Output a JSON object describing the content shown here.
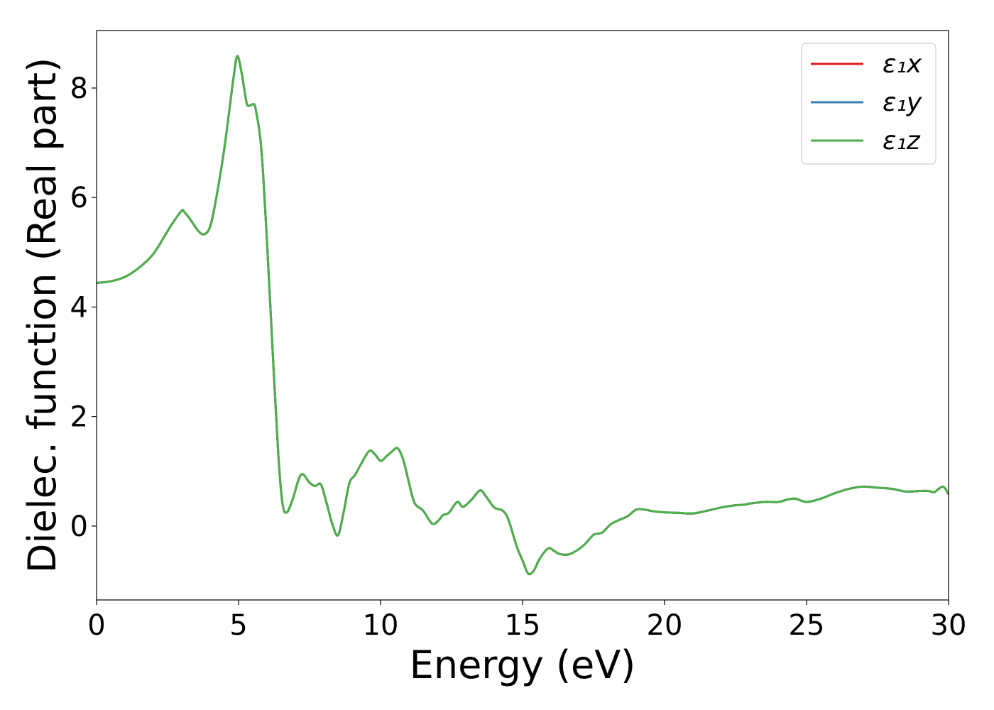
{
  "chart_data": {
    "type": "line",
    "title": "",
    "xlabel": "Energy (eV)",
    "ylabel": "Dielec. function (Real part)",
    "xlim": [
      0,
      30
    ],
    "ylim": [
      -1.35,
      9.05
    ],
    "xticks": [
      0,
      5,
      10,
      15,
      20,
      25,
      30
    ],
    "yticks": [
      0,
      2,
      4,
      6,
      8
    ],
    "grid": false,
    "legend_position": "top-right",
    "x": [
      0,
      0.5,
      1.0,
      1.5,
      2.0,
      2.4,
      2.7,
      3.0,
      3.1,
      3.3,
      3.6,
      3.8,
      4.0,
      4.2,
      4.5,
      4.8,
      4.95,
      5.1,
      5.2,
      5.3,
      5.4,
      5.5,
      5.6,
      5.8,
      6.0,
      6.2,
      6.4,
      6.55,
      6.7,
      6.9,
      7.2,
      7.5,
      7.7,
      7.9,
      8.1,
      8.3,
      8.5,
      8.7,
      8.9,
      9.1,
      9.3,
      9.6,
      9.8,
      10.0,
      10.2,
      10.4,
      10.6,
      10.8,
      11.0,
      11.2,
      11.5,
      11.8,
      12.0,
      12.2,
      12.4,
      12.7,
      12.9,
      13.2,
      13.5,
      13.7,
      14.0,
      14.3,
      14.5,
      14.8,
      15.0,
      15.2,
      15.4,
      15.6,
      15.9,
      16.1,
      16.3,
      16.6,
      16.9,
      17.2,
      17.5,
      17.8,
      18.1,
      18.4,
      18.7,
      19.0,
      19.3,
      19.6,
      20.0,
      20.5,
      21.0,
      21.5,
      22.0,
      22.5,
      22.8,
      23.0,
      23.5,
      24.0,
      24.3,
      24.6,
      25.0,
      25.5,
      26.0,
      26.5,
      27.0,
      27.5,
      28.0,
      28.5,
      29.0,
      29.3,
      29.5,
      29.8,
      30.0
    ],
    "series": [
      {
        "name": "ε₁x",
        "color": "#e41a1c",
        "values": [
          4.44,
          4.47,
          4.55,
          4.72,
          4.97,
          5.3,
          5.55,
          5.76,
          5.73,
          5.6,
          5.38,
          5.33,
          5.47,
          5.95,
          6.9,
          8.1,
          8.58,
          8.3,
          7.98,
          7.7,
          7.68,
          7.7,
          7.62,
          6.9,
          5.2,
          3.2,
          1.3,
          0.4,
          0.25,
          0.48,
          0.94,
          0.79,
          0.73,
          0.76,
          0.42,
          0.04,
          -0.17,
          0.25,
          0.78,
          0.93,
          1.12,
          1.37,
          1.31,
          1.19,
          1.27,
          1.36,
          1.42,
          1.21,
          0.79,
          0.42,
          0.28,
          0.05,
          0.08,
          0.2,
          0.24,
          0.44,
          0.35,
          0.48,
          0.65,
          0.55,
          0.34,
          0.28,
          0.12,
          -0.38,
          -0.63,
          -0.87,
          -0.81,
          -0.6,
          -0.41,
          -0.45,
          -0.51,
          -0.52,
          -0.45,
          -0.33,
          -0.16,
          -0.12,
          0.03,
          0.11,
          0.18,
          0.3,
          0.3,
          0.27,
          0.25,
          0.24,
          0.23,
          0.28,
          0.34,
          0.38,
          0.39,
          0.41,
          0.44,
          0.44,
          0.48,
          0.5,
          0.44,
          0.5,
          0.6,
          0.68,
          0.72,
          0.7,
          0.68,
          0.63,
          0.64,
          0.64,
          0.62,
          0.72,
          0.58
        ]
      },
      {
        "name": "ε₁y",
        "color": "#377eb8",
        "values": [
          4.44,
          4.47,
          4.55,
          4.72,
          4.97,
          5.3,
          5.55,
          5.76,
          5.73,
          5.6,
          5.38,
          5.33,
          5.47,
          5.95,
          6.9,
          8.1,
          8.58,
          8.3,
          7.98,
          7.7,
          7.68,
          7.7,
          7.62,
          6.9,
          5.2,
          3.2,
          1.3,
          0.4,
          0.25,
          0.48,
          0.94,
          0.79,
          0.73,
          0.76,
          0.42,
          0.04,
          -0.17,
          0.25,
          0.78,
          0.93,
          1.12,
          1.37,
          1.31,
          1.19,
          1.27,
          1.36,
          1.42,
          1.21,
          0.79,
          0.42,
          0.28,
          0.05,
          0.08,
          0.2,
          0.24,
          0.44,
          0.35,
          0.48,
          0.65,
          0.55,
          0.34,
          0.28,
          0.12,
          -0.38,
          -0.63,
          -0.87,
          -0.81,
          -0.6,
          -0.41,
          -0.45,
          -0.51,
          -0.52,
          -0.45,
          -0.33,
          -0.16,
          -0.12,
          0.03,
          0.11,
          0.18,
          0.3,
          0.3,
          0.27,
          0.25,
          0.24,
          0.23,
          0.28,
          0.34,
          0.38,
          0.39,
          0.41,
          0.44,
          0.44,
          0.48,
          0.5,
          0.44,
          0.5,
          0.6,
          0.68,
          0.72,
          0.7,
          0.68,
          0.63,
          0.64,
          0.64,
          0.62,
          0.72,
          0.58
        ]
      },
      {
        "name": "ε₁z",
        "color": "#4daf4a",
        "values": [
          4.44,
          4.47,
          4.55,
          4.72,
          4.97,
          5.3,
          5.55,
          5.76,
          5.73,
          5.6,
          5.38,
          5.33,
          5.47,
          5.95,
          6.9,
          8.1,
          8.58,
          8.3,
          7.98,
          7.7,
          7.68,
          7.7,
          7.62,
          6.9,
          5.2,
          3.2,
          1.3,
          0.4,
          0.25,
          0.48,
          0.94,
          0.79,
          0.73,
          0.76,
          0.42,
          0.04,
          -0.17,
          0.25,
          0.78,
          0.93,
          1.12,
          1.37,
          1.31,
          1.19,
          1.27,
          1.36,
          1.42,
          1.21,
          0.79,
          0.42,
          0.28,
          0.05,
          0.08,
          0.2,
          0.24,
          0.44,
          0.35,
          0.48,
          0.65,
          0.55,
          0.34,
          0.28,
          0.12,
          -0.38,
          -0.63,
          -0.87,
          -0.81,
          -0.6,
          -0.41,
          -0.45,
          -0.51,
          -0.52,
          -0.45,
          -0.33,
          -0.16,
          -0.12,
          0.03,
          0.11,
          0.18,
          0.3,
          0.3,
          0.27,
          0.25,
          0.24,
          0.23,
          0.28,
          0.34,
          0.38,
          0.39,
          0.41,
          0.44,
          0.44,
          0.48,
          0.5,
          0.44,
          0.5,
          0.6,
          0.68,
          0.72,
          0.7,
          0.68,
          0.63,
          0.64,
          0.64,
          0.62,
          0.72,
          0.58
        ]
      }
    ]
  }
}
